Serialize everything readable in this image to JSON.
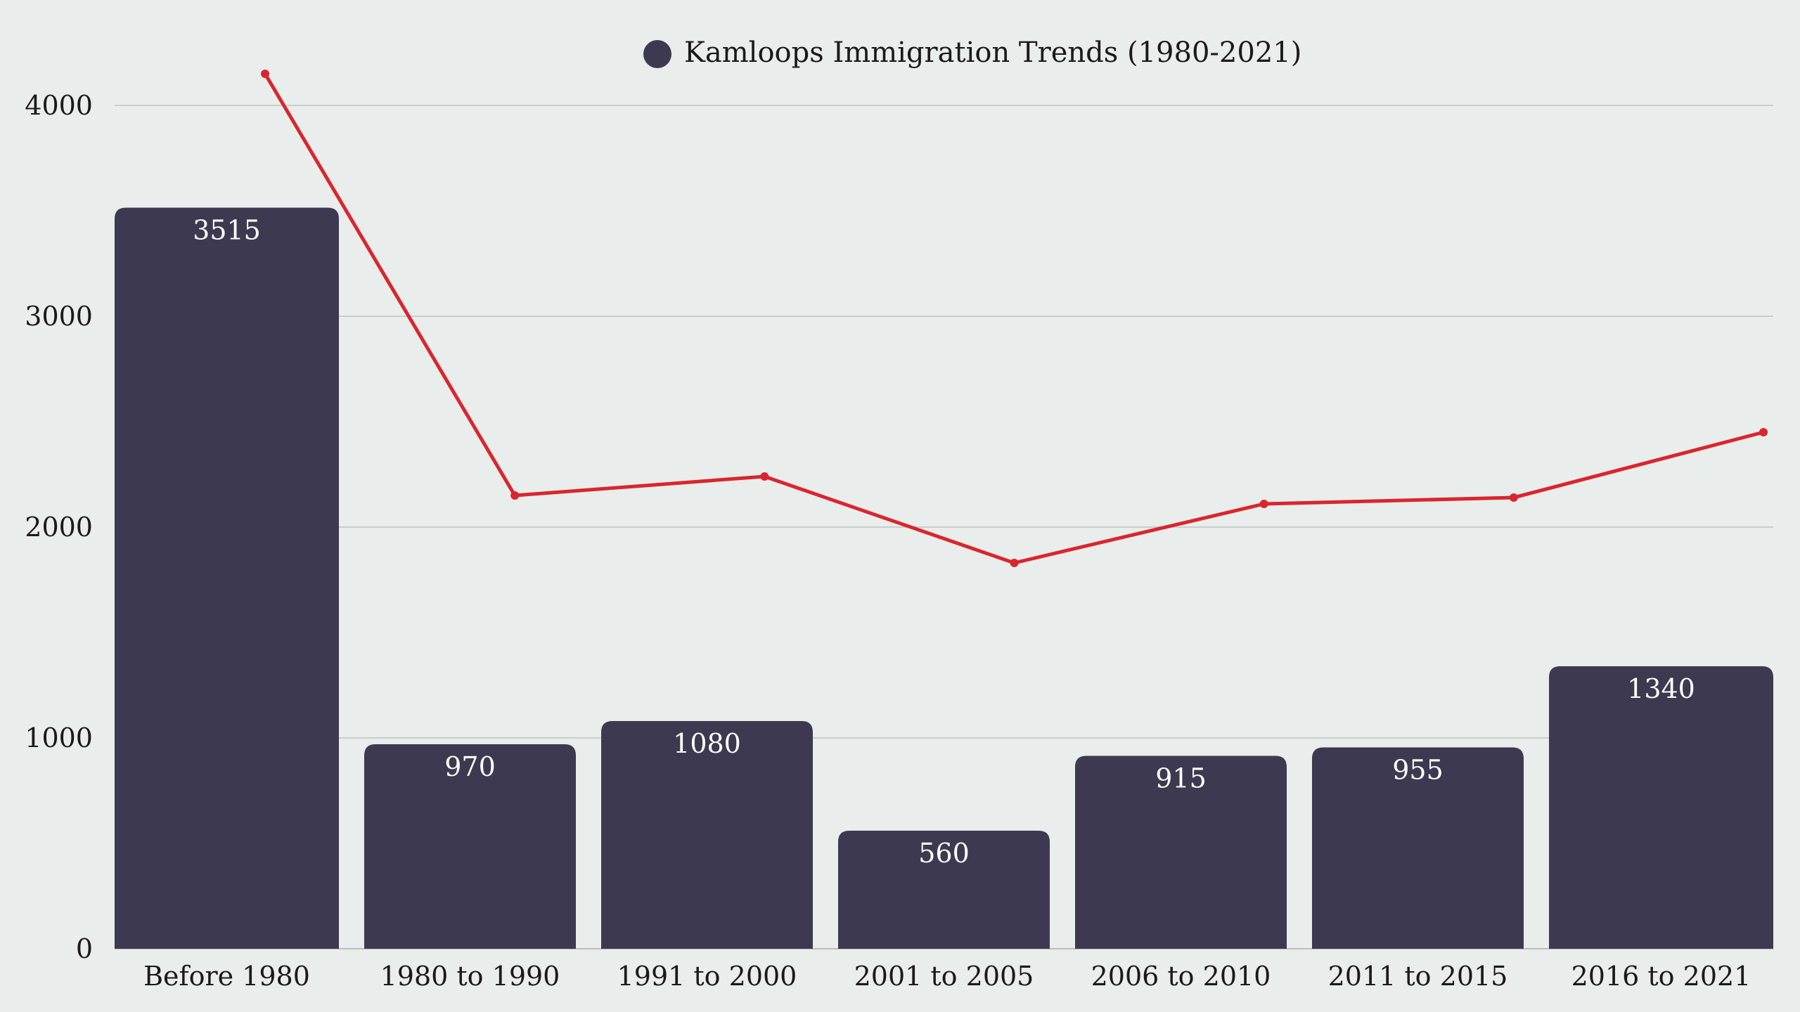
{
  "chart_data": {
    "type": "bar",
    "title": "",
    "categories": [
      "Before 1980",
      "1980 to 1990",
      "1991 to 2000",
      "2001 to 2005",
      "2006 to 2010",
      "2011 to 2015",
      "2016 to 2021"
    ],
    "series": [
      {
        "name": "Kamloops Immigration Trends (1980-2021)",
        "type": "bar",
        "values": [
          3515,
          970,
          1080,
          560,
          915,
          955,
          1340
        ],
        "color": "#3D3950"
      },
      {
        "name": "",
        "type": "line",
        "values": [
          4150,
          2150,
          2240,
          1830,
          2110,
          2140,
          2450
        ],
        "color": "#D9262E"
      }
    ],
    "legend": {
      "label": "Kamloops Immigration Trends (1980-2021)",
      "placement": "top-center"
    },
    "xlabel": "",
    "ylabel": "",
    "ylim": [
      0,
      4000
    ],
    "yticks": [
      0,
      1000,
      2000,
      3000,
      4000
    ],
    "grid": true
  },
  "colors": {
    "background": "#E9EDEB",
    "bar": "#3D3950",
    "line": "#D9262E",
    "grid": "#C9CDCB"
  }
}
